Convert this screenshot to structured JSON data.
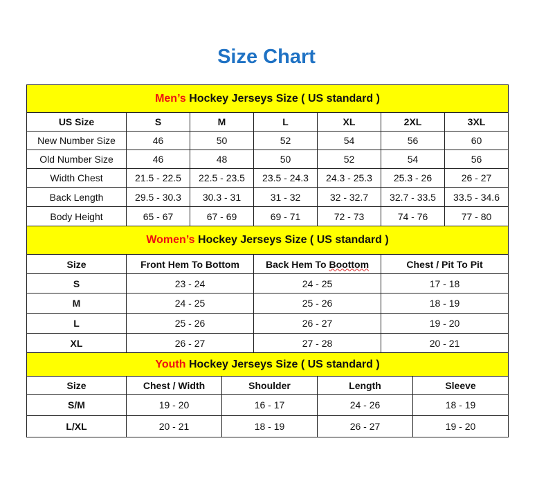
{
  "title": "Size Chart",
  "colors": {
    "title": "#1f72c4",
    "section_header_bg": "#ffff00",
    "highlight_text": "#ee1111"
  },
  "sections": [
    {
      "id": "men",
      "highlight": "Men’s",
      "heading": " Hockey Jerseys Size ( US standard )",
      "columns": [
        "US Size",
        "S",
        "M",
        "L",
        "XL",
        "2XL",
        "3XL"
      ],
      "rows": [
        [
          "New Number Size",
          "46",
          "50",
          "52",
          "54",
          "56",
          "60"
        ],
        [
          "Old Number Size",
          "46",
          "48",
          "50",
          "52",
          "54",
          "56"
        ],
        [
          "Width Chest",
          "21.5 - 22.5",
          "22.5 - 23.5",
          "23.5 - 24.3",
          "24.3 - 25.3",
          "25.3 - 26",
          "26 - 27"
        ],
        [
          "Back Length",
          "29.5 - 30.3",
          "30.3 - 31",
          "31 - 32",
          "32 - 32.7",
          "32.7 - 33.5",
          "33.5 - 34.6"
        ],
        [
          "Body Height",
          "65 - 67",
          "67 - 69",
          "69 - 71",
          "72 - 73",
          "74 - 76",
          "77 - 80"
        ]
      ]
    },
    {
      "id": "women",
      "highlight": "Women’s",
      "heading": " Hockey Jerseys Size ( US standard )",
      "columns": [
        "Size",
        "Front Hem To Bottom",
        "Back Hem To Boottom",
        "Chest / Pit To Pit"
      ],
      "rows": [
        [
          "S",
          "23 - 24",
          "24 - 25",
          "17 - 18"
        ],
        [
          "M",
          "24 - 25",
          "25 - 26",
          "18 - 19"
        ],
        [
          "L",
          "25 - 26",
          "26 - 27",
          "19 - 20"
        ],
        [
          "XL",
          "26 - 27",
          "27 - 28",
          "20 - 21"
        ]
      ]
    },
    {
      "id": "youth",
      "highlight": "Youth",
      "heading": " Hockey Jerseys Size ( US standard )",
      "columns": [
        "Size",
        "Chest / Width",
        "Shoulder",
        "Length",
        "Sleeve"
      ],
      "rows": [
        [
          "S/M",
          "19 - 20",
          "16 - 17",
          "24 - 26",
          "18 - 19"
        ],
        [
          "L/XL",
          "20 - 21",
          "18 - 19",
          "26 - 27",
          "19 - 20"
        ]
      ]
    }
  ]
}
